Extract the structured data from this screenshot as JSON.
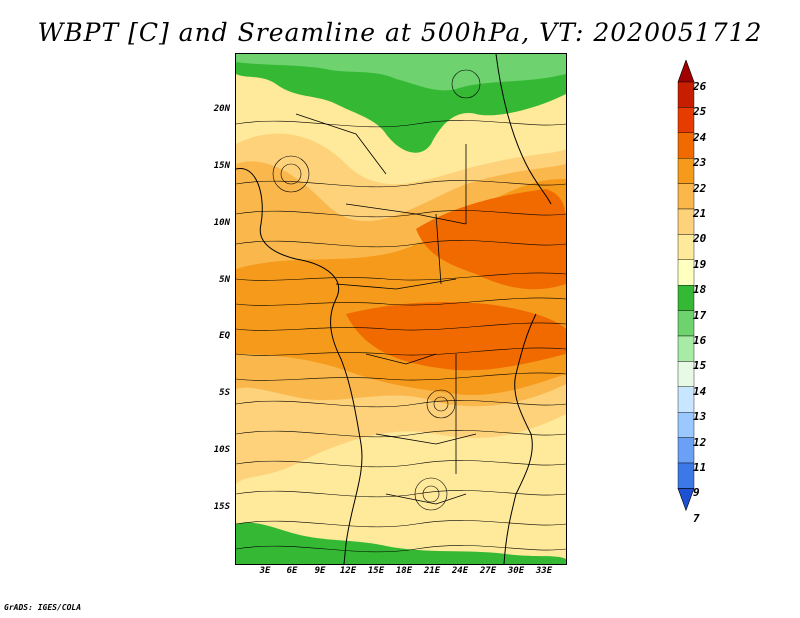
{
  "title": "WBPT [C] and Sreamline at 500hPa, VT: 2020051712",
  "credit": "GrADS: IGES/COLA",
  "map": {
    "lat_labels": [
      "20N",
      "15N",
      "10N",
      "5N",
      "EQ",
      "5S",
      "10S",
      "15S"
    ],
    "lon_labels": [
      "3E",
      "6E",
      "9E",
      "12E",
      "15E",
      "18E",
      "21E",
      "24E",
      "27E",
      "30E",
      "33E"
    ]
  },
  "colorbar": {
    "labels": [
      "26",
      "25",
      "24",
      "23",
      "22",
      "21",
      "20",
      "19",
      "18",
      "17",
      "16",
      "15",
      "14",
      "13",
      "12",
      "11",
      "9",
      "7"
    ],
    "colors": [
      "#a00000",
      "#c81e00",
      "#e63c00",
      "#f06a00",
      "#f59a1a",
      "#fab74b",
      "#fdd27a",
      "#ffe99a",
      "#ffffc0",
      "#35b935",
      "#6ed36e",
      "#a6eba6",
      "#e6fae6",
      "#c8e6ff",
      "#9ac8ff",
      "#6aa0f5",
      "#3c78e6",
      "#1e50d2"
    ]
  }
}
